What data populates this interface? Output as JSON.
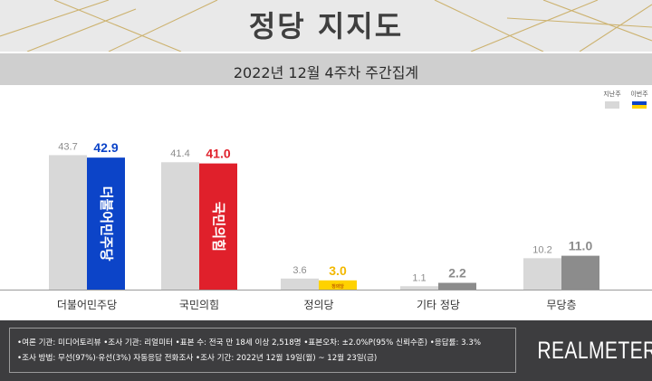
{
  "header": {
    "title": "정당 지지도"
  },
  "subheader": {
    "period": "2022년 12월 4주차 주간집계"
  },
  "legend": {
    "prev_label": "지난주",
    "curr_label": "이번주"
  },
  "colors": {
    "prev_bar": "#d8d8d8",
    "prev_label": "#8c8c8c",
    "baseline": "#9a9a9a",
    "category_text": "#333333"
  },
  "chart_data": {
    "type": "bar",
    "categories": [
      "더불어민주당",
      "국민의힘",
      "정의당",
      "기타 정당",
      "무당층"
    ],
    "series": [
      {
        "name": "지난주",
        "values": [
          43.7,
          41.4,
          3.6,
          1.1,
          10.2
        ]
      },
      {
        "name": "이번주",
        "values": [
          42.9,
          41.0,
          3.0,
          2.2,
          11.0
        ]
      }
    ],
    "current_colors": [
      "#0c44c8",
      "#e0202b",
      "#ffd200",
      "#8c8c8c",
      "#8c8c8c"
    ],
    "current_label_colors": [
      "#0c44c8",
      "#e0202b",
      "#f2b800",
      "#8c8c8c",
      "#8c8c8c"
    ],
    "bar_labels": [
      "더불어민주당",
      "국민의힘",
      "정의당",
      "",
      ""
    ],
    "ylim": [
      0,
      50
    ]
  },
  "footer": {
    "note_line1": "•여론 기관: 미디어토리뷰 •조사 기관: 리얼미터 •표본 수: 전국 만 18세 이상 2,518명 •표본오차: ±2.0%P(95% 신뢰수준) •응답률: 3.3%",
    "note_line2": "•조사 방법: 무선(97%)·유선(3%) 자동응답 전화조사 •조사 기간: 2022년 12월 19일(월) ~ 12월 23일(금)",
    "brand": "REALMETER"
  }
}
